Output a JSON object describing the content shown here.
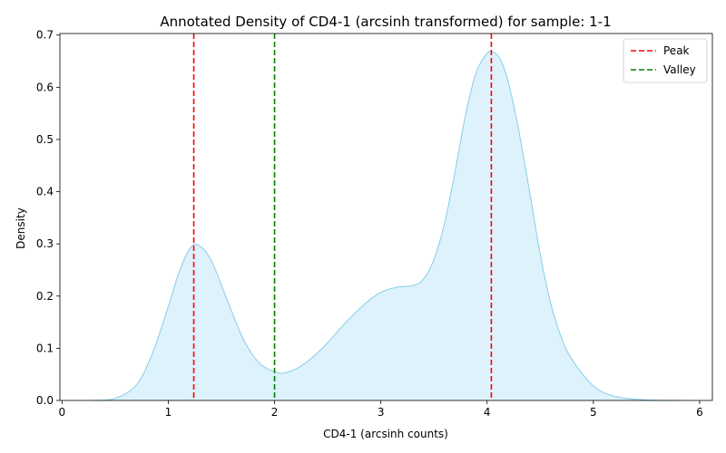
{
  "chart_data": {
    "type": "area",
    "title": "Annotated Density of CD4-1 (arcsinh transformed) for sample: 1-1",
    "xlabel": "CD4-1 (arcsinh counts)",
    "ylabel": "Density",
    "xlim": [
      -0.02,
      6.12
    ],
    "ylim": [
      0,
      0.703
    ],
    "xticks": [
      "0",
      "1",
      "2",
      "3",
      "4",
      "5",
      "6"
    ],
    "yticks": [
      "0.0",
      "0.1",
      "0.2",
      "0.3",
      "0.4",
      "0.5",
      "0.6",
      "0.7"
    ],
    "grid": false,
    "legend_position": "top-right",
    "density": {
      "line_color": "#87ceeb",
      "fill_color": "#ddf2fa",
      "x": [
        0.28,
        0.5,
        0.7,
        0.85,
        1.0,
        1.1,
        1.2,
        1.28,
        1.4,
        1.55,
        1.7,
        1.85,
        2.0,
        2.1,
        2.25,
        2.45,
        2.65,
        2.85,
        3.0,
        3.15,
        3.3,
        3.4,
        3.5,
        3.6,
        3.7,
        3.8,
        3.9,
        4.0,
        4.05,
        4.12,
        4.2,
        4.3,
        4.4,
        4.5,
        4.6,
        4.7,
        4.8,
        5.0,
        5.2,
        5.5,
        5.85
      ],
      "y": [
        0.0,
        0.004,
        0.03,
        0.09,
        0.18,
        0.245,
        0.29,
        0.298,
        0.27,
        0.195,
        0.12,
        0.073,
        0.055,
        0.053,
        0.066,
        0.1,
        0.145,
        0.185,
        0.207,
        0.217,
        0.22,
        0.232,
        0.27,
        0.34,
        0.44,
        0.55,
        0.63,
        0.665,
        0.668,
        0.655,
        0.61,
        0.515,
        0.4,
        0.28,
        0.185,
        0.12,
        0.078,
        0.028,
        0.008,
        0.001,
        0.0
      ]
    },
    "lines": [
      {
        "name": "Peak",
        "x": 1.24,
        "color": "#ff0000"
      },
      {
        "name": "Valley",
        "x": 2.0,
        "color": "#008000"
      },
      {
        "name": "",
        "x": 4.04,
        "color": "#ff0000"
      }
    ],
    "legend": [
      {
        "label": "Peak",
        "color": "#ff0000"
      },
      {
        "label": "Valley",
        "color": "#008000"
      }
    ]
  }
}
